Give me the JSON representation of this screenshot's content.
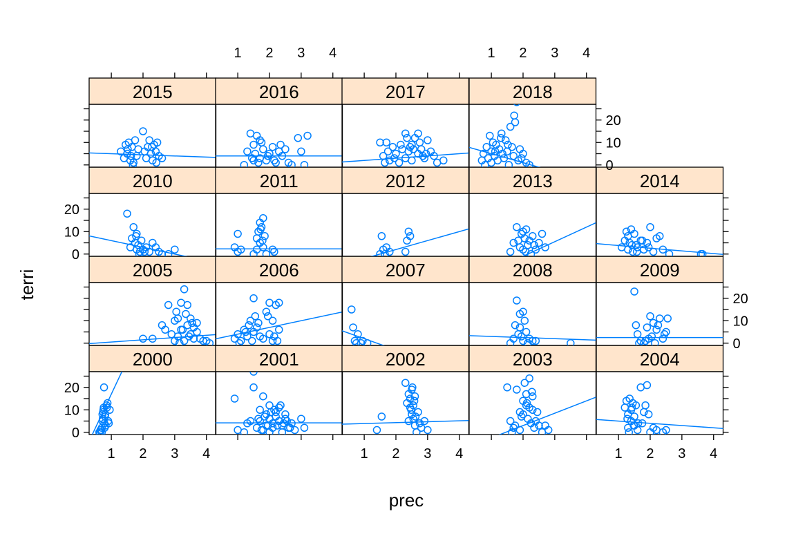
{
  "chart_data": {
    "type": "scatter",
    "layout": "lattice",
    "xlabel": "prec",
    "ylabel": "terri",
    "xlim": [
      0.3,
      4.3
    ],
    "ylim": [
      -1,
      27
    ],
    "x_ticks": [
      1,
      2,
      3,
      4
    ],
    "y_ticks": [
      0,
      10,
      20
    ],
    "grid": false,
    "colors": {
      "points": "#0080ff",
      "strip": "#ffe5cc",
      "axis": "#000000"
    },
    "panels": [
      {
        "label": "2000",
        "line": {
          "intercept": -13.0,
          "slope": 30.0
        },
        "x": [
          0.62,
          0.65,
          0.68,
          0.7,
          0.72,
          0.72,
          0.74,
          0.75,
          0.76,
          0.77,
          0.78,
          0.8,
          0.82,
          0.85,
          0.88,
          0.9,
          0.7,
          0.73,
          0.81,
          0.86,
          0.92,
          0.95,
          0.66,
          0.79
        ],
        "y": [
          0,
          0,
          1,
          2,
          5,
          8,
          9,
          10,
          11,
          20,
          4,
          7,
          3,
          12,
          13,
          5,
          0,
          6,
          8,
          11,
          4,
          10,
          1,
          2
        ]
      },
      {
        "label": "2001",
        "line": {
          "intercept": 4.2,
          "slope": 0.0
        },
        "x": [
          0.9,
          1.0,
          1.3,
          1.5,
          1.5,
          1.6,
          1.7,
          1.7,
          1.8,
          1.8,
          1.9,
          1.9,
          2.0,
          2.0,
          2.0,
          2.1,
          2.1,
          2.2,
          2.2,
          2.3,
          2.3,
          2.4,
          2.4,
          2.5,
          2.5,
          2.6,
          2.7,
          2.8,
          3.0,
          3.1,
          1.2,
          1.4,
          1.85,
          1.95,
          2.15,
          2.35,
          2.45,
          2.55,
          2.65,
          1.65,
          1.75,
          2.05,
          2.25
        ],
        "y": [
          15,
          1,
          4,
          27,
          20,
          2,
          10,
          5,
          1,
          16,
          3,
          8,
          0,
          6,
          12,
          4,
          2,
          9,
          7,
          5,
          11,
          0,
          3,
          6,
          8,
          2,
          4,
          1,
          6,
          2,
          0,
          5,
          7,
          3,
          10,
          12,
          4,
          5,
          2,
          6,
          1,
          9,
          3
        ]
      },
      {
        "label": "2002",
        "line": {
          "intercept": 3.5,
          "slope": 0.4
        },
        "x": [
          1.4,
          1.55,
          2.3,
          2.4,
          2.4,
          2.45,
          2.45,
          2.5,
          2.5,
          2.55,
          2.55,
          2.6,
          2.6,
          2.65,
          2.7,
          2.75,
          2.8,
          2.9,
          3.0,
          2.35,
          2.48,
          2.58,
          2.62,
          2.52
        ],
        "y": [
          1,
          7,
          22,
          5,
          17,
          11,
          15,
          8,
          19,
          6,
          12,
          3,
          16,
          0,
          9,
          4,
          2,
          5,
          1,
          13,
          10,
          14,
          7,
          20
        ]
      },
      {
        "label": "2003",
        "line": {
          "intercept": -8.0,
          "slope": 5.5
        },
        "x": [
          1.5,
          1.6,
          1.7,
          1.75,
          1.8,
          1.9,
          1.9,
          2.0,
          2.0,
          2.05,
          2.1,
          2.1,
          2.15,
          2.2,
          2.2,
          2.25,
          2.3,
          2.3,
          2.35,
          2.4,
          2.5,
          2.6,
          2.7,
          2.8,
          1.95,
          2.12,
          2.28,
          1.65,
          2.45
        ],
        "y": [
          20,
          5,
          2,
          3,
          19,
          9,
          1,
          8,
          14,
          22,
          17,
          12,
          6,
          24,
          11,
          4,
          16,
          10,
          2,
          5,
          3,
          0,
          3,
          1,
          7,
          13,
          18,
          0,
          9
        ]
      },
      {
        "label": "2004",
        "line": {
          "intercept": 6.0,
          "slope": -1.0
        },
        "x": [
          1.2,
          1.25,
          1.3,
          1.3,
          1.35,
          1.4,
          1.4,
          1.45,
          1.5,
          1.5,
          1.55,
          1.6,
          1.7,
          1.75,
          1.8,
          1.85,
          1.9,
          2.0,
          2.1,
          2.2,
          2.4,
          2.5,
          1.28,
          1.42,
          1.62,
          1.95,
          1.33,
          1.48
        ],
        "y": [
          11,
          14,
          8,
          2,
          15,
          10,
          5,
          13,
          3,
          7,
          12,
          1,
          20,
          4,
          9,
          12,
          21,
          0,
          2,
          1,
          0,
          1,
          6,
          11,
          4,
          8,
          0,
          3
        ]
      },
      {
        "label": "2005",
        "line": {
          "intercept": -0.5,
          "slope": 1.0
        },
        "x": [
          2.0,
          2.3,
          2.6,
          2.7,
          2.8,
          2.9,
          3.0,
          3.0,
          3.1,
          3.1,
          3.2,
          3.2,
          3.3,
          3.3,
          3.35,
          3.4,
          3.4,
          3.5,
          3.5,
          3.6,
          3.6,
          3.7,
          3.7,
          3.8,
          3.9,
          4.0,
          4.1,
          3.05,
          3.25,
          3.45,
          3.55,
          3.15
        ],
        "y": [
          2,
          2,
          8,
          6,
          17,
          4,
          1,
          10,
          3,
          11,
          18,
          6,
          24,
          1,
          13,
          8,
          17,
          4,
          11,
          2,
          7,
          5,
          9,
          2,
          1,
          1,
          0,
          14,
          6,
          3,
          9,
          0
        ]
      },
      {
        "label": "2006",
        "line": {
          "intercept": 1.0,
          "slope": 3.0
        },
        "x": [
          0.9,
          1.0,
          1.1,
          1.2,
          1.3,
          1.35,
          1.4,
          1.45,
          1.5,
          1.5,
          1.55,
          1.6,
          1.7,
          1.8,
          1.9,
          2.0,
          2.0,
          2.1,
          2.1,
          2.2,
          2.3,
          2.3,
          1.25,
          1.65,
          1.95,
          2.15,
          2.25,
          1.05
        ],
        "y": [
          2,
          4,
          1,
          6,
          3,
          8,
          10,
          1,
          20,
          5,
          12,
          7,
          3,
          2,
          14,
          18,
          4,
          1,
          10,
          17,
          18,
          6,
          5,
          9,
          12,
          3,
          1,
          0
        ]
      },
      {
        "label": "2007",
        "line": {
          "intercept": 7.0,
          "slope": -5.0
        },
        "x": [
          0.6,
          0.65,
          0.7,
          0.75,
          0.8,
          0.9,
          0.95,
          1.1
        ],
        "y": [
          15,
          7,
          1,
          0,
          4,
          0,
          1,
          0
        ]
      },
      {
        "label": "2008",
        "line": {
          "intercept": 3.5,
          "slope": -0.5
        },
        "x": [
          1.6,
          1.7,
          1.75,
          1.8,
          1.85,
          1.9,
          1.9,
          2.0,
          2.0,
          2.05,
          2.1,
          2.2,
          2.3,
          2.4,
          3.5,
          1.95,
          2.15
        ],
        "y": [
          0,
          2,
          8,
          19,
          4,
          13,
          7,
          14,
          1,
          10,
          5,
          2,
          1,
          1,
          0,
          3,
          0
        ]
      },
      {
        "label": "2009",
        "line": {
          "intercept": 2.5,
          "slope": 0.0
        },
        "x": [
          1.5,
          1.55,
          1.6,
          1.7,
          1.8,
          1.9,
          1.95,
          2.0,
          2.05,
          2.1,
          2.15,
          2.2,
          2.3,
          2.4,
          2.5,
          2.55,
          1.65,
          1.85,
          2.25,
          2.45
        ],
        "y": [
          23,
          8,
          4,
          1,
          0,
          7,
          2,
          12,
          3,
          9,
          0,
          6,
          11,
          2,
          5,
          11,
          0,
          1,
          8,
          4
        ]
      },
      {
        "label": "2010",
        "line": {
          "intercept": 9.0,
          "slope": -3.0
        },
        "x": [
          1.5,
          1.6,
          1.65,
          1.7,
          1.75,
          1.8,
          1.8,
          1.85,
          1.9,
          1.95,
          2.0,
          2.1,
          2.2,
          2.3,
          2.4,
          2.5,
          2.6,
          2.8,
          3.0,
          1.78,
          1.88,
          2.05
        ],
        "y": [
          18,
          3,
          7,
          12,
          5,
          9,
          2,
          4,
          1,
          6,
          2,
          3,
          1,
          5,
          3,
          1,
          0,
          0,
          2,
          8,
          0,
          1
        ]
      },
      {
        "label": "2011",
        "line": {
          "intercept": 2.3,
          "slope": 0.0
        },
        "x": [
          0.9,
          1.0,
          1.0,
          1.1,
          1.5,
          1.6,
          1.6,
          1.65,
          1.7,
          1.7,
          1.75,
          1.8,
          1.8,
          1.85,
          1.9,
          2.1,
          2.15,
          1.72,
          1.78
        ],
        "y": [
          3,
          9,
          1,
          2,
          0,
          2,
          7,
          10,
          5,
          14,
          12,
          16,
          3,
          8,
          0,
          2,
          1,
          11,
          6
        ]
      },
      {
        "label": "2012",
        "line": {
          "intercept": -6.0,
          "slope": 4.0
        },
        "x": [
          1.5,
          1.55,
          1.6,
          1.65,
          1.7,
          1.8,
          2.3,
          2.35,
          2.4,
          2.45
        ],
        "y": [
          0,
          8,
          2,
          0,
          3,
          1,
          1,
          6,
          10,
          8
        ]
      },
      {
        "label": "2013",
        "line": {
          "intercept": -14.0,
          "slope": 6.5
        },
        "x": [
          1.6,
          1.7,
          1.8,
          1.9,
          1.95,
          2.0,
          2.0,
          2.05,
          2.1,
          2.15,
          2.2,
          2.25,
          2.3,
          2.4,
          2.5,
          2.6,
          2.7,
          1.85,
          2.08,
          2.35
        ],
        "y": [
          1,
          5,
          12,
          3,
          9,
          10,
          2,
          7,
          11,
          4,
          6,
          0,
          8,
          2,
          5,
          9,
          3,
          6,
          1,
          4
        ]
      },
      {
        "label": "2014",
        "line": {
          "intercept": 5.0,
          "slope": -1.2
        },
        "x": [
          1.1,
          1.2,
          1.25,
          1.3,
          1.3,
          1.35,
          1.4,
          1.45,
          1.5,
          1.55,
          1.6,
          1.7,
          1.8,
          1.9,
          2.0,
          2.1,
          2.2,
          2.3,
          2.4,
          2.6,
          3.6,
          3.65,
          1.42,
          1.58,
          1.75,
          1.95
        ],
        "y": [
          3,
          6,
          10,
          2,
          8,
          5,
          11,
          1,
          9,
          4,
          3,
          6,
          2,
          5,
          12,
          1,
          7,
          8,
          2,
          0,
          0,
          0,
          4,
          1,
          6,
          3
        ]
      },
      {
        "label": "2015",
        "line": {
          "intercept": 5.5,
          "slope": -0.5
        },
        "x": [
          1.3,
          1.4,
          1.45,
          1.5,
          1.55,
          1.6,
          1.65,
          1.7,
          1.75,
          1.8,
          1.85,
          2.0,
          2.1,
          2.15,
          2.2,
          2.25,
          2.3,
          2.35,
          2.4,
          2.45,
          2.5,
          2.6,
          1.52,
          1.68,
          2.05,
          2.28,
          1.62,
          2.42
        ],
        "y": [
          6,
          3,
          9,
          5,
          10,
          2,
          8,
          1,
          11,
          4,
          7,
          15,
          3,
          8,
          11,
          5,
          2,
          9,
          6,
          10,
          4,
          3,
          7,
          0,
          6,
          8,
          4,
          1
        ]
      },
      {
        "label": "2016",
        "line": {
          "intercept": 4.0,
          "slope": 0.0
        },
        "x": [
          1.2,
          1.3,
          1.4,
          1.5,
          1.5,
          1.55,
          1.6,
          1.65,
          1.7,
          1.7,
          1.8,
          1.9,
          2.0,
          2.1,
          2.2,
          2.3,
          2.4,
          2.5,
          2.7,
          2.9,
          3.0,
          3.1,
          3.2,
          1.45,
          1.75,
          1.95,
          2.15,
          2.35,
          2.6
        ],
        "y": [
          0,
          6,
          14,
          2,
          9,
          5,
          13,
          1,
          11,
          3,
          7,
          2,
          5,
          8,
          1,
          6,
          4,
          7,
          0,
          12,
          6,
          0,
          13,
          3,
          10,
          4,
          2,
          9,
          1
        ]
      },
      {
        "label": "2017",
        "line": {
          "intercept": 1.0,
          "slope": 1.0
        },
        "x": [
          1.5,
          1.6,
          1.7,
          1.8,
          1.9,
          2.0,
          2.1,
          2.2,
          2.3,
          2.3,
          2.4,
          2.5,
          2.5,
          2.6,
          2.7,
          2.7,
          2.8,
          2.9,
          3.0,
          3.1,
          3.2,
          3.3,
          3.5,
          1.75,
          1.95,
          2.15,
          2.35,
          2.55,
          2.75,
          2.95,
          1.65,
          2.45,
          2.85
        ],
        "y": [
          10,
          4,
          10,
          2,
          8,
          5,
          1,
          7,
          3,
          14,
          6,
          9,
          2,
          12,
          5,
          14,
          7,
          3,
          11,
          6,
          4,
          1,
          2,
          6,
          3,
          9,
          12,
          7,
          10,
          5,
          1,
          8,
          4
        ]
      },
      {
        "label": "2018",
        "line": {
          "intercept": 9.0,
          "slope": -4.0
        },
        "x": [
          0.7,
          0.75,
          0.8,
          0.85,
          0.9,
          0.95,
          1.0,
          1.0,
          1.05,
          1.1,
          1.15,
          1.2,
          1.25,
          1.3,
          1.35,
          1.4,
          1.45,
          1.5,
          1.55,
          1.6,
          1.65,
          1.7,
          1.75,
          1.8,
          1.85,
          1.9,
          1.95,
          2.0,
          2.1,
          2.2,
          1.12,
          1.32,
          1.52,
          1.72
        ],
        "y": [
          2,
          5,
          0,
          8,
          3,
          13,
          6,
          1,
          10,
          4,
          9,
          2,
          7,
          12,
          5,
          3,
          11,
          6,
          0,
          17,
          8,
          4,
          19,
          28,
          2,
          7,
          3,
          5,
          1,
          0,
          6,
          14,
          9,
          22
        ]
      }
    ]
  }
}
